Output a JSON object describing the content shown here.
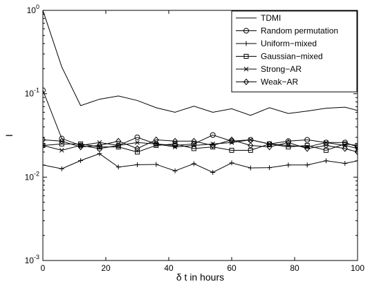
{
  "chart_data": {
    "type": "line",
    "title": "",
    "xlabel": "δ t in hours",
    "ylabel": "I",
    "xlim": [
      0,
      100
    ],
    "ylim": [
      0.001,
      1
    ],
    "yscale": "log",
    "grid": false,
    "legend_position": "top-right",
    "x_ticks": [
      0,
      20,
      40,
      60,
      80,
      100
    ],
    "x_tick_labels": [
      "0",
      "20",
      "40",
      "60",
      "80",
      "100"
    ],
    "y_ticks": [
      0.001,
      0.01,
      0.1,
      1
    ],
    "y_tick_labels": [
      {
        "base": "10",
        "exp": "-3"
      },
      {
        "base": "10",
        "exp": "-2"
      },
      {
        "base": "10",
        "exp": "-1"
      },
      {
        "base": "10",
        "exp": "0"
      }
    ],
    "x": [
      0,
      6,
      12,
      18,
      24,
      30,
      36,
      42,
      48,
      54,
      60,
      66,
      72,
      78,
      84,
      90,
      96,
      100
    ],
    "series": [
      {
        "name": "TDMI",
        "marker": "none",
        "color": "#000000",
        "values": [
          1.0,
          0.21,
          0.072,
          0.086,
          0.094,
          0.083,
          0.068,
          0.06,
          0.071,
          0.06,
          0.066,
          0.055,
          0.068,
          0.058,
          0.062,
          0.067,
          0.069,
          0.063
        ]
      },
      {
        "name": "Random permutation",
        "marker": "circle",
        "color": "#000000",
        "values": [
          0.11,
          0.029,
          0.024,
          0.022,
          0.024,
          0.03,
          0.025,
          0.024,
          0.025,
          0.032,
          0.027,
          0.028,
          0.025,
          0.027,
          0.028,
          0.026,
          0.026,
          0.023
        ]
      },
      {
        "name": "Uniform−mixed",
        "marker": "plus",
        "color": "#000000",
        "values": [
          0.014,
          0.0126,
          0.0158,
          0.0191,
          0.0132,
          0.0141,
          0.0142,
          0.0119,
          0.0145,
          0.0114,
          0.0148,
          0.0129,
          0.013,
          0.014,
          0.014,
          0.0157,
          0.0146,
          0.0157
        ]
      },
      {
        "name": "Gaussian−mixed",
        "marker": "square",
        "color": "#000000",
        "values": [
          0.024,
          0.025,
          0.025,
          0.023,
          0.023,
          0.02,
          0.024,
          0.025,
          0.022,
          0.023,
          0.021,
          0.021,
          0.025,
          0.023,
          0.024,
          0.021,
          0.025,
          0.024
        ]
      },
      {
        "name": "Strong−AR",
        "marker": "x",
        "color": "#000000",
        "values": [
          0.024,
          0.021,
          0.024,
          0.026,
          0.024,
          0.026,
          0.025,
          0.023,
          0.024,
          0.025,
          0.026,
          0.028,
          0.025,
          0.024,
          0.023,
          0.026,
          0.024,
          0.022
        ]
      },
      {
        "name": "Weak−AR",
        "marker": "diamond",
        "color": "#000000",
        "values": [
          0.028,
          0.027,
          0.023,
          0.024,
          0.027,
          0.022,
          0.028,
          0.027,
          0.027,
          0.024,
          0.028,
          0.024,
          0.023,
          0.026,
          0.022,
          0.024,
          0.022,
          0.02
        ]
      }
    ]
  }
}
